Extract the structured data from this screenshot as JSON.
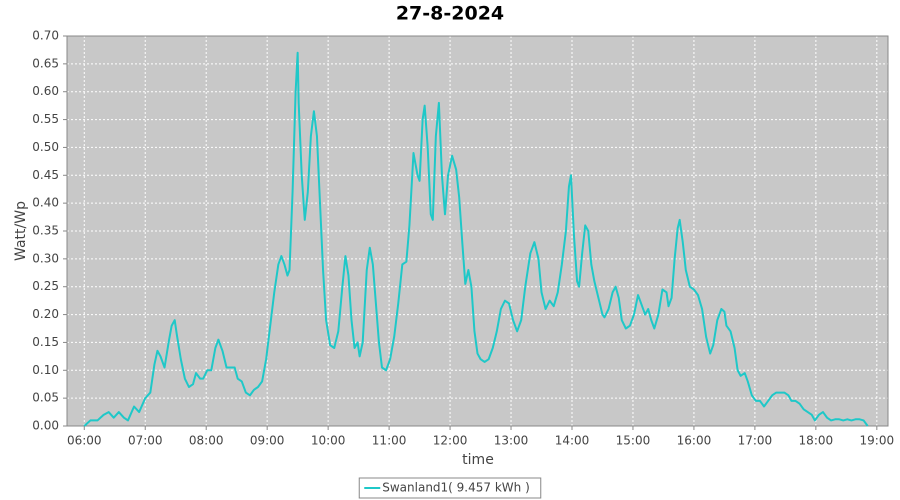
{
  "chart_data": {
    "type": "line",
    "title": "27-8-2024",
    "x_label": "time",
    "y_label": "Watt/Wp",
    "xlim": [
      343,
      1151
    ],
    "ylim": [
      0,
      0.7
    ],
    "xticks": [
      {
        "value": 360,
        "label": "06:00"
      },
      {
        "value": 420,
        "label": "07:00"
      },
      {
        "value": 480,
        "label": "08:00"
      },
      {
        "value": 540,
        "label": "09:00"
      },
      {
        "value": 600,
        "label": "10:00"
      },
      {
        "value": 660,
        "label": "11:00"
      },
      {
        "value": 720,
        "label": "12:00"
      },
      {
        "value": 780,
        "label": "13:00"
      },
      {
        "value": 840,
        "label": "14:00"
      },
      {
        "value": 900,
        "label": "15:00"
      },
      {
        "value": 960,
        "label": "16:00"
      },
      {
        "value": 1020,
        "label": "17:00"
      },
      {
        "value": 1080,
        "label": "18:00"
      },
      {
        "value": 1140,
        "label": "19:00"
      }
    ],
    "yticks": [
      {
        "value": 0,
        "label": "0.00"
      },
      0.05,
      {
        "value": 0.1,
        "label": "0.10"
      },
      0.15,
      {
        "value": 0.2,
        "label": "0.20"
      },
      0.25,
      {
        "value": 0.3,
        "label": "0.30"
      },
      0.35,
      {
        "value": 0.4,
        "label": "0.40"
      },
      0.45,
      {
        "value": 0.5,
        "label": "0.50"
      },
      0.55,
      {
        "value": 0.6,
        "label": "0.60"
      },
      0.65,
      {
        "value": 0.7,
        "label": "0.70"
      }
    ],
    "grid": true,
    "legend": "bottom",
    "x": [
      360,
      366,
      373,
      379,
      384,
      389,
      394,
      399,
      403,
      409,
      414,
      420,
      425,
      429,
      432,
      435,
      439,
      443,
      446,
      449,
      451,
      455,
      459,
      463,
      467,
      470,
      474,
      477,
      481,
      485,
      489,
      492,
      496,
      500,
      504,
      508,
      511,
      515,
      519,
      523,
      527,
      531,
      535,
      539,
      543,
      547,
      551,
      554,
      557,
      560,
      562,
      565,
      568,
      570,
      571,
      574,
      577,
      580,
      583,
      586,
      589,
      592,
      595,
      598,
      602,
      606,
      610,
      614,
      617,
      620,
      623,
      626,
      629,
      631,
      634,
      638,
      641,
      644,
      647,
      650,
      653,
      657,
      661,
      665,
      669,
      673,
      677,
      680,
      684,
      688,
      690,
      693,
      695,
      698,
      701,
      703,
      706,
      709,
      712,
      715,
      718,
      722,
      726,
      729,
      732,
      735,
      738,
      741,
      744,
      747,
      750,
      754,
      758,
      762,
      766,
      770,
      774,
      778,
      782,
      786,
      790,
      794,
      799,
      803,
      807,
      810,
      814,
      818,
      822,
      826,
      830,
      834,
      837,
      839,
      842,
      845,
      847,
      850,
      853,
      856,
      859,
      862,
      866,
      870,
      872,
      876,
      880,
      883,
      886,
      889,
      893,
      897,
      901,
      905,
      909,
      912,
      915,
      918,
      921,
      925,
      929,
      933,
      935,
      938,
      941,
      944,
      946,
      949,
      952,
      956,
      960,
      964,
      968,
      972,
      976,
      979,
      983,
      987,
      990,
      992,
      996,
      1000,
      1003,
      1006,
      1010,
      1013,
      1017,
      1021,
      1025,
      1029,
      1033,
      1037,
      1041,
      1045,
      1049,
      1053,
      1056,
      1060,
      1064,
      1068,
      1072,
      1076,
      1079,
      1083,
      1087,
      1091,
      1095,
      1099,
      1103,
      1107,
      1111,
      1115,
      1119,
      1123,
      1127,
      1131
    ],
    "series": [
      {
        "name": "Swanland1( 9.457 kWh )",
        "color": "#1fc8c8",
        "values": [
          0,
          0.01,
          0.01,
          0.02,
          0.025,
          0.015,
          0.025,
          0.015,
          0.01,
          0.035,
          0.025,
          0.05,
          0.06,
          0.11,
          0.135,
          0.125,
          0.105,
          0.15,
          0.18,
          0.19,
          0.165,
          0.12,
          0.085,
          0.07,
          0.075,
          0.095,
          0.085,
          0.085,
          0.1,
          0.1,
          0.14,
          0.155,
          0.135,
          0.105,
          0.105,
          0.105,
          0.085,
          0.08,
          0.06,
          0.055,
          0.065,
          0.07,
          0.08,
          0.12,
          0.18,
          0.24,
          0.29,
          0.305,
          0.29,
          0.27,
          0.28,
          0.42,
          0.6,
          0.67,
          0.58,
          0.45,
          0.37,
          0.42,
          0.52,
          0.565,
          0.52,
          0.4,
          0.28,
          0.19,
          0.145,
          0.14,
          0.17,
          0.25,
          0.305,
          0.27,
          0.19,
          0.14,
          0.15,
          0.125,
          0.15,
          0.28,
          0.32,
          0.29,
          0.22,
          0.15,
          0.105,
          0.1,
          0.12,
          0.16,
          0.22,
          0.29,
          0.295,
          0.36,
          0.49,
          0.45,
          0.44,
          0.55,
          0.575,
          0.5,
          0.38,
          0.37,
          0.52,
          0.58,
          0.45,
          0.38,
          0.45,
          0.485,
          0.46,
          0.41,
          0.33,
          0.255,
          0.28,
          0.25,
          0.17,
          0.13,
          0.12,
          0.115,
          0.12,
          0.14,
          0.17,
          0.21,
          0.225,
          0.22,
          0.19,
          0.17,
          0.19,
          0.25,
          0.31,
          0.33,
          0.3,
          0.24,
          0.21,
          0.225,
          0.215,
          0.24,
          0.29,
          0.35,
          0.43,
          0.45,
          0.34,
          0.26,
          0.25,
          0.31,
          0.36,
          0.35,
          0.29,
          0.26,
          0.23,
          0.2,
          0.195,
          0.21,
          0.24,
          0.25,
          0.23,
          0.19,
          0.175,
          0.18,
          0.2,
          0.235,
          0.215,
          0.2,
          0.21,
          0.19,
          0.175,
          0.2,
          0.245,
          0.24,
          0.215,
          0.23,
          0.3,
          0.355,
          0.37,
          0.33,
          0.28,
          0.25,
          0.245,
          0.235,
          0.21,
          0.16,
          0.13,
          0.145,
          0.19,
          0.21,
          0.205,
          0.18,
          0.17,
          0.14,
          0.1,
          0.09,
          0.095,
          0.08,
          0.055,
          0.045,
          0.045,
          0.035,
          0.045,
          0.055,
          0.06,
          0.06,
          0.06,
          0.055,
          0.045,
          0.045,
          0.04,
          0.03,
          0.025,
          0.02,
          0.01,
          0.02,
          0.025,
          0.015,
          0.01,
          0.012,
          0.012,
          0.01,
          0.012,
          0.01,
          0.012,
          0.012,
          0.01,
          0
        ]
      }
    ]
  }
}
